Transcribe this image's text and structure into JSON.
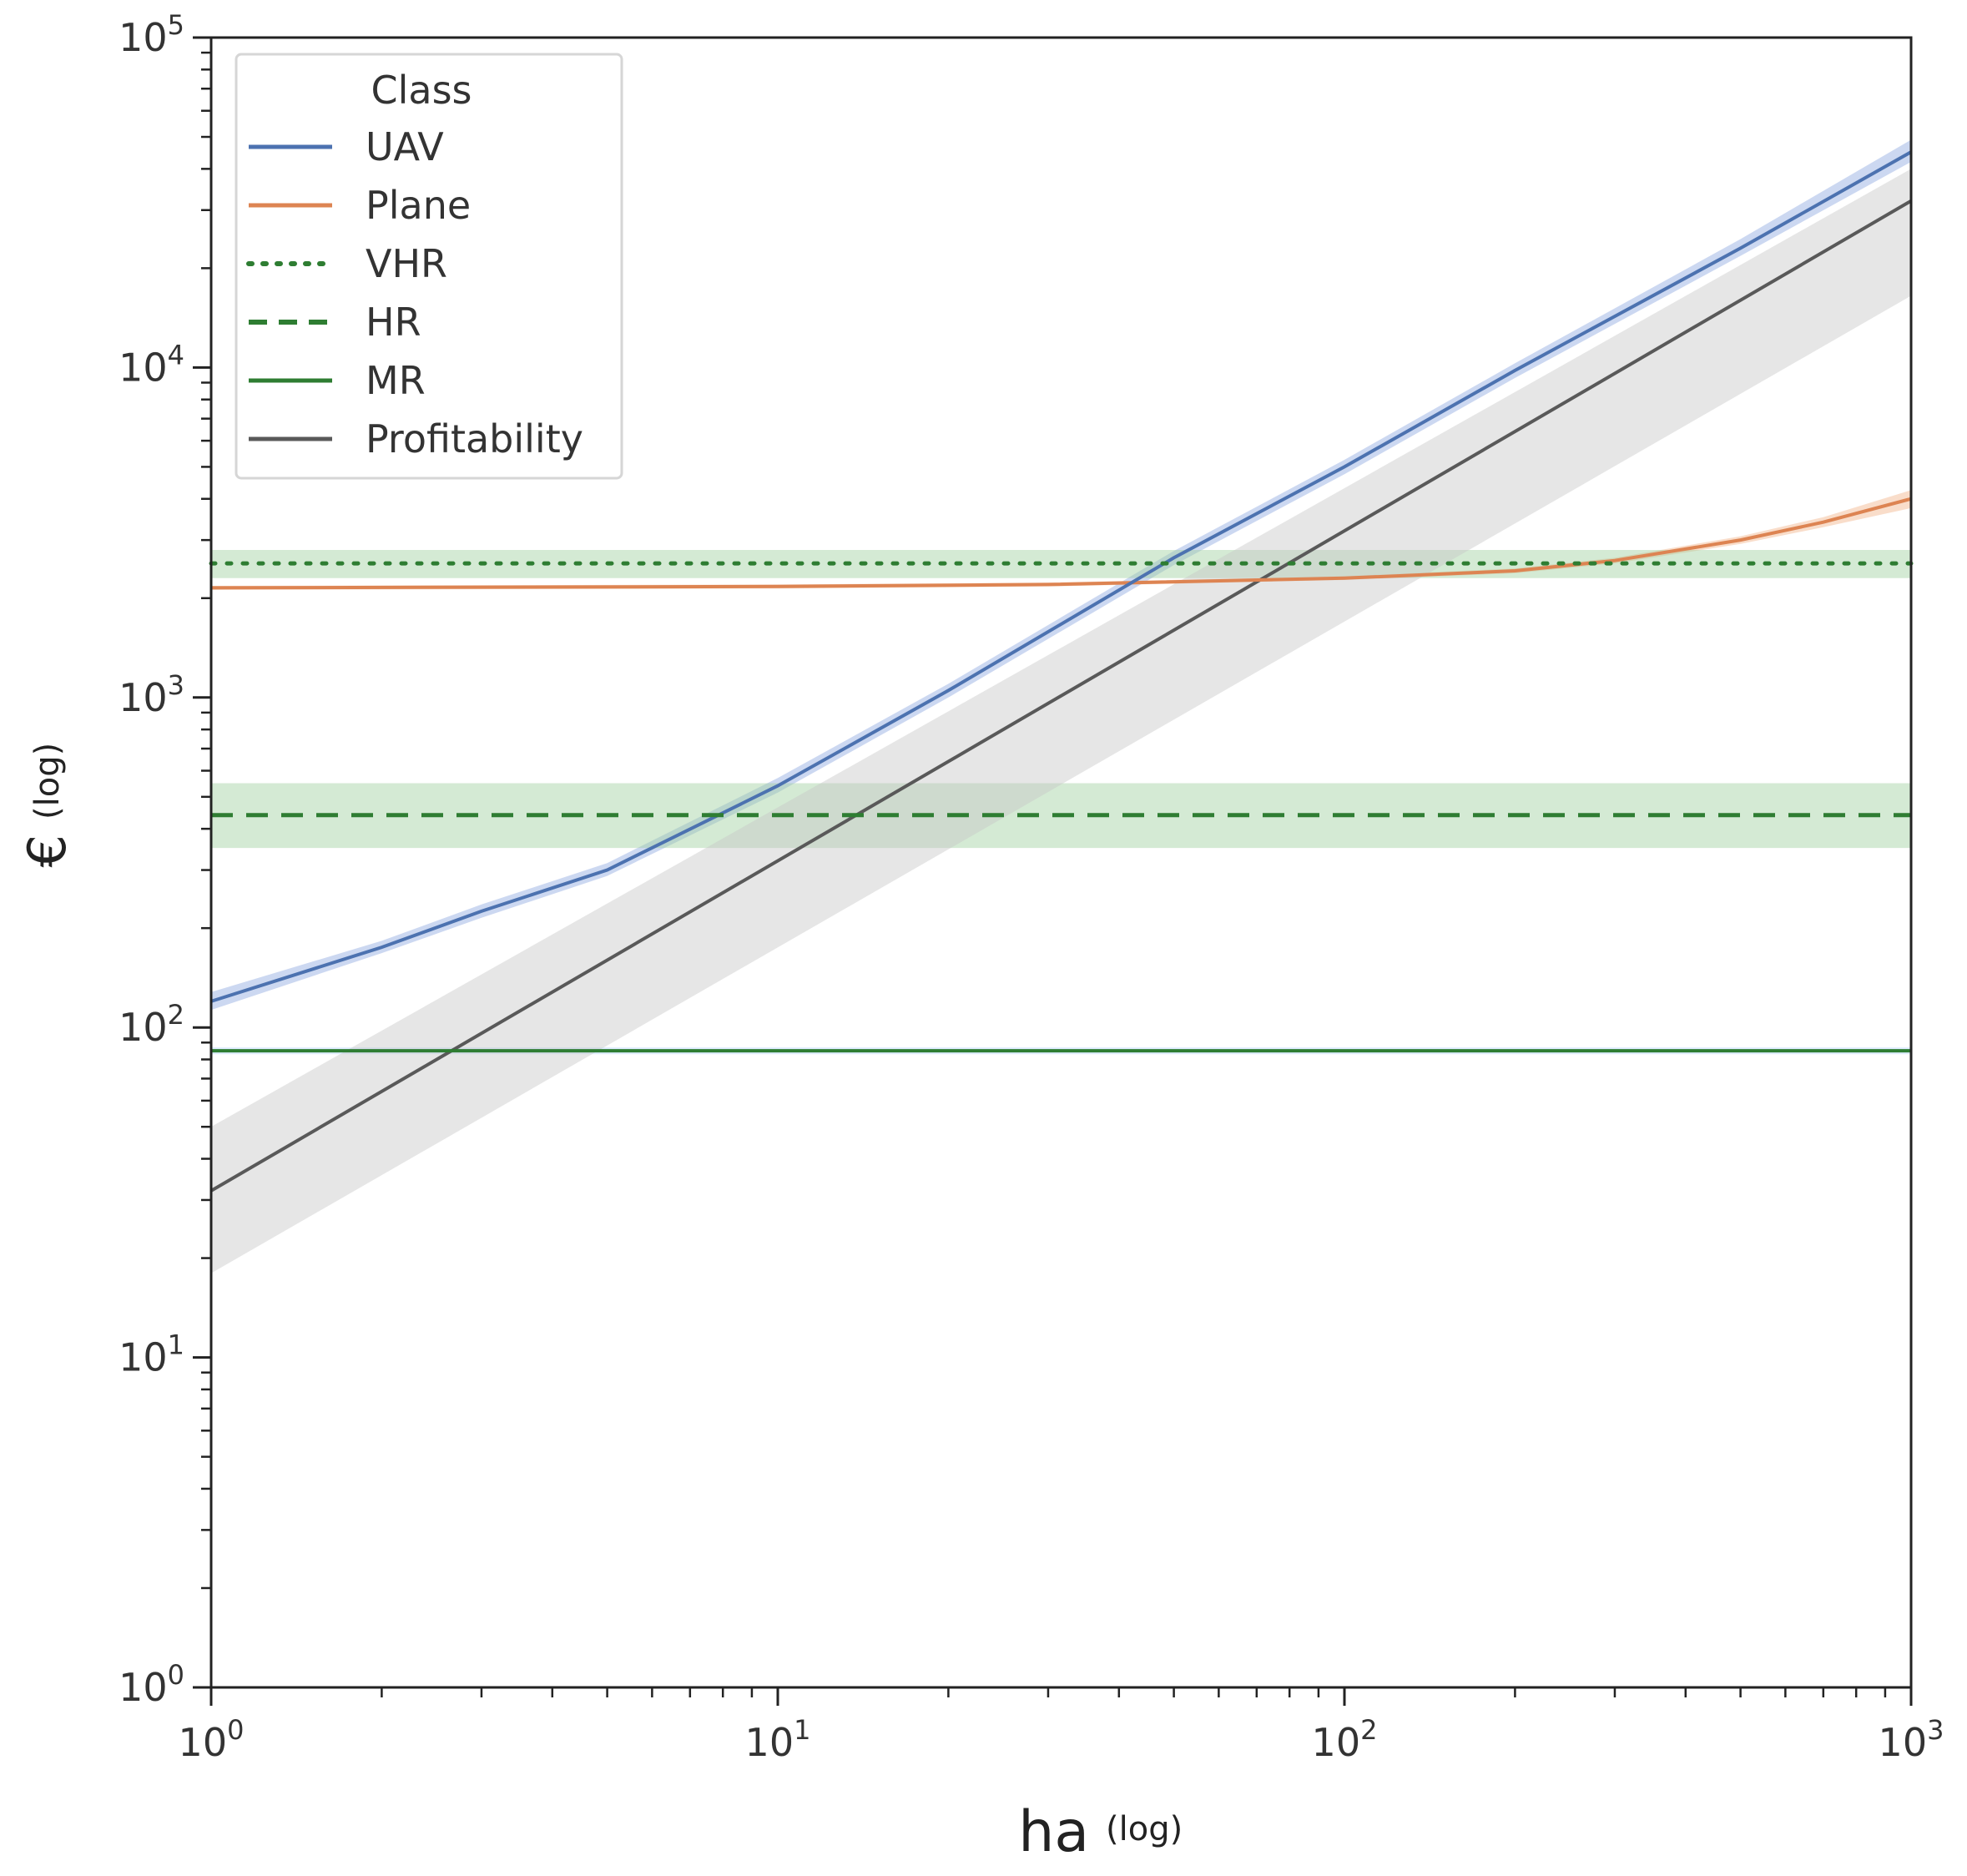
{
  "chart_data": {
    "type": "line",
    "title": "",
    "xlabel": "ha",
    "xlabel_suffix": "(log)",
    "ylabel": "€",
    "ylabel_suffix": "(log)",
    "xscale": "log",
    "yscale": "log",
    "xlim": [
      1,
      1000
    ],
    "ylim": [
      1,
      100000
    ],
    "xticks": [
      {
        "base": "10",
        "exp": "0",
        "value": 1
      },
      {
        "base": "10",
        "exp": "1",
        "value": 10
      },
      {
        "base": "10",
        "exp": "2",
        "value": 100
      },
      {
        "base": "10",
        "exp": "3",
        "value": 1000
      }
    ],
    "yticks": [
      {
        "base": "10",
        "exp": "0",
        "value": 1
      },
      {
        "base": "10",
        "exp": "1",
        "value": 10
      },
      {
        "base": "10",
        "exp": "2",
        "value": 100
      },
      {
        "base": "10",
        "exp": "3",
        "value": 1000
      },
      {
        "base": "10",
        "exp": "4",
        "value": 10000
      },
      {
        "base": "10",
        "exp": "5",
        "value": 100000
      }
    ],
    "grid": false,
    "legend": {
      "title": "Class",
      "position": "top-left",
      "entries": [
        {
          "label": "UAV",
          "color": "#4c72b0",
          "style": "solid"
        },
        {
          "label": "Plane",
          "color": "#dd8452",
          "style": "solid"
        },
        {
          "label": "VHR",
          "color": "#2e7d32",
          "style": "dotted"
        },
        {
          "label": "HR",
          "color": "#2e7d32",
          "style": "dashed"
        },
        {
          "label": "MR",
          "color": "#2e7d32",
          "style": "solid"
        },
        {
          "label": "Profitability",
          "color": "#595959",
          "style": "solid"
        }
      ]
    },
    "series": [
      {
        "name": "UAV",
        "color": "#4c72b0",
        "style": "solid",
        "band_color": "#8fa8e0",
        "x": [
          1,
          2,
          3,
          5,
          10,
          20,
          50,
          100,
          200,
          500,
          1000
        ],
        "y": [
          120,
          175,
          225,
          300,
          540,
          1050,
          2650,
          5000,
          9800,
          23000,
          45000
        ],
        "lower": [
          113,
          168,
          215,
          288,
          515,
          1000,
          2520,
          4750,
          9300,
          21800,
          42000
        ],
        "upper": [
          128,
          183,
          236,
          315,
          570,
          1100,
          2780,
          5250,
          10300,
          24500,
          49000
        ]
      },
      {
        "name": "Plane",
        "color": "#dd8452",
        "style": "solid",
        "band_color": "#f2b48a",
        "x": [
          1,
          10,
          30,
          100,
          200,
          300,
          500,
          700,
          1000
        ],
        "y": [
          2150,
          2170,
          2200,
          2300,
          2420,
          2600,
          3000,
          3400,
          4000
        ],
        "lower": [
          2120,
          2140,
          2170,
          2270,
          2380,
          2550,
          2920,
          3280,
          3750
        ],
        "upper": [
          2180,
          2200,
          2230,
          2330,
          2460,
          2650,
          3080,
          3520,
          4250
        ]
      },
      {
        "name": "VHR",
        "color": "#2e7d32",
        "style": "dotted",
        "band_color": "#9fd0a0",
        "x": [
          1,
          1000
        ],
        "y": [
          2550,
          2550
        ],
        "lower": [
          2300,
          2300
        ],
        "upper": [
          2800,
          2800
        ]
      },
      {
        "name": "HR",
        "color": "#2e7d32",
        "style": "dashed",
        "band_color": "#9fd0a0",
        "x": [
          1,
          1000
        ],
        "y": [
          440,
          440
        ],
        "lower": [
          350,
          350
        ],
        "upper": [
          550,
          550
        ]
      },
      {
        "name": "MR",
        "color": "#2e7d32",
        "style": "solid",
        "band_color": "#b8d8ff",
        "x": [
          1,
          1000
        ],
        "y": [
          85,
          85
        ],
        "lower": [
          83,
          83
        ],
        "upper": [
          87,
          87
        ]
      },
      {
        "name": "Profitability",
        "color": "#595959",
        "style": "solid",
        "band_color": "#c8c8c8",
        "x": [
          1,
          1000
        ],
        "y": [
          32,
          32000
        ],
        "lower": [
          18,
          16500
        ],
        "upper": [
          50,
          40000
        ]
      }
    ]
  }
}
